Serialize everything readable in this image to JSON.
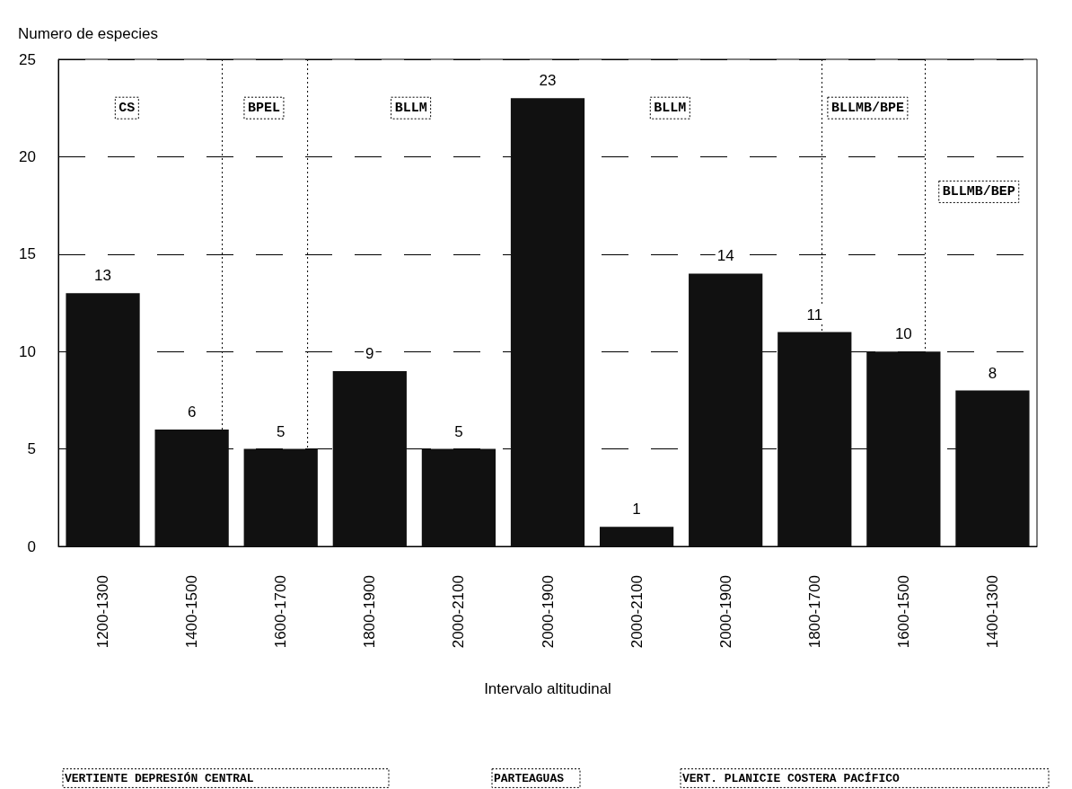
{
  "chart_data": {
    "type": "bar",
    "ylabel": "Numero de especies",
    "xlabel": "Intervalo altitudinal",
    "categories": [
      "1200-1300",
      "1400-1500",
      "1600-1700",
      "1800-1900",
      "2000-2100",
      "2000-1900",
      "2000-2100",
      "2000-1900",
      "1800-1700",
      "1600-1500",
      "1400-1300"
    ],
    "values": [
      13,
      6,
      5,
      9,
      5,
      23,
      1,
      14,
      11,
      10,
      8
    ],
    "color": "#111111",
    "data_labels": true,
    "ylim": [
      0,
      25
    ],
    "yticks": [
      0,
      5,
      10,
      15,
      20,
      25
    ],
    "grid": "y",
    "annotations": [
      "CS",
      "BPEL",
      "BLLM",
      "BLLM",
      "BLLMB/BPE",
      "BLLMB/BEP",
      "VERTIENTE DEPRESIÓN CENTRAL",
      "PARTEAGUAS",
      "VERT. PLANICIE COSTERA PACÍFICO"
    ]
  }
}
